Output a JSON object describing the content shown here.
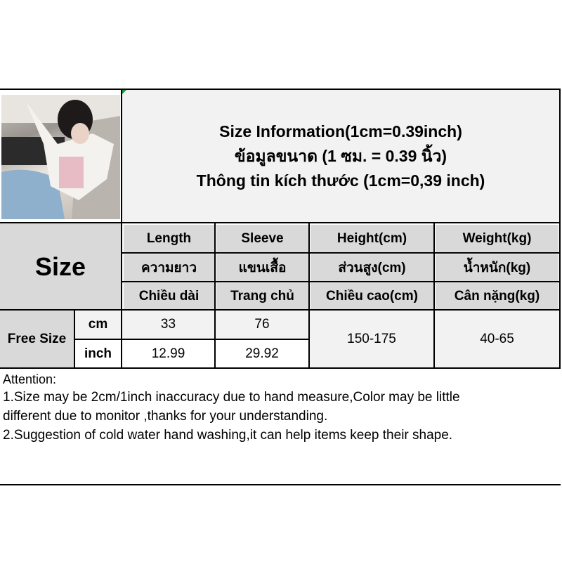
{
  "header": {
    "line_en": "Size Information(1cm=0.39inch)",
    "line_th": "ข้อมูลขนาด (1 ซม. = 0.39 นิ้ว)",
    "line_vi": "Thông tin kích thước (1cm=0,39 inch)"
  },
  "table": {
    "size_label": "Size",
    "columns": [
      {
        "en": "Length",
        "th": "ความยาว",
        "vi": "Chiều dài"
      },
      {
        "en": "Sleeve",
        "th": "แขนเสื้อ",
        "vi": "Trang chủ"
      },
      {
        "en": "Height(cm)",
        "th": "ส่วนสูง(cm)",
        "vi": "Chiều cao(cm)"
      },
      {
        "en": "Weight(kg)",
        "th": "น้ำหนัก(kg)",
        "vi": "Cân nặng(kg)"
      }
    ],
    "row": {
      "size": "Free Size",
      "unit_cm": "cm",
      "unit_inch": "inch",
      "length_cm": "33",
      "sleeve_cm": "76",
      "length_inch": "12.99",
      "sleeve_inch": "29.92",
      "height": "150-175",
      "weight": "40-65"
    }
  },
  "notes": {
    "title": "Attention:",
    "line1": "1.Size may be 2cm/1inch inaccuracy due to hand measure,Color may be little",
    "line2": "different due to monitor ,thanks for your understanding.",
    "line3": "2.Suggestion of cold water hand washing,it can help items keep their shape."
  }
}
